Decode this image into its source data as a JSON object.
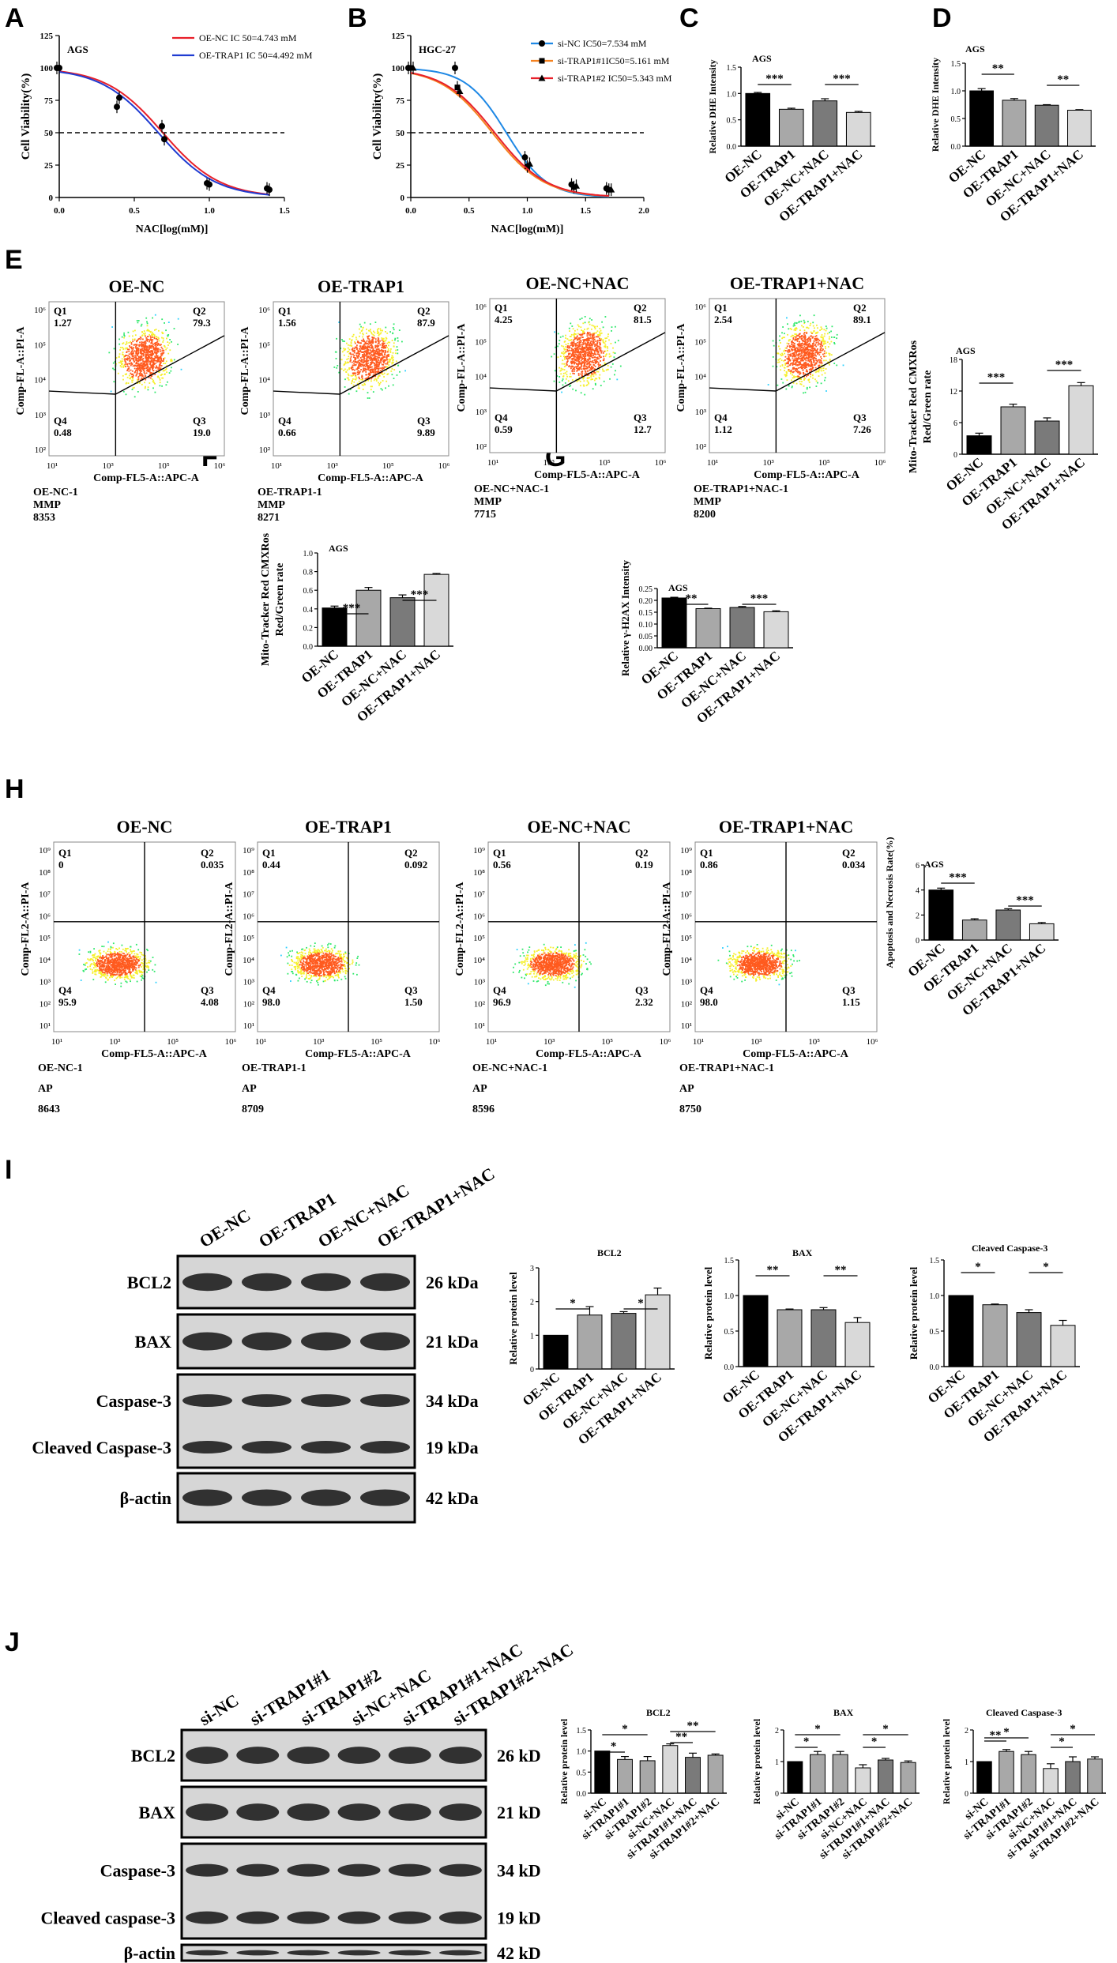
{
  "panel_letters": [
    "A",
    "B",
    "C",
    "D",
    "E",
    "F",
    "G",
    "H",
    "I",
    "J"
  ],
  "panelA": {
    "cell_line": "AGS",
    "xlabel": "NAC[log(mM)]",
    "ylabel": "Cell Viability(%)",
    "xticks": [
      "0.0",
      "0.5",
      "1.0",
      "1.5"
    ],
    "yticks": [
      "0",
      "25",
      "50",
      "75",
      "100",
      "125"
    ],
    "legend": [
      "OE-NC IC 50=4.743 mM",
      "OE-TRAP1 IC 50=4.492 mM"
    ],
    "colors": [
      "#e8202a",
      "#1f3bd1"
    ]
  },
  "panelB": {
    "cell_line": "HGC-27",
    "xlabel": "NAC[log(mM)]",
    "ylabel": "Cell Viability(%)",
    "xticks": [
      "0.0",
      "0.5",
      "1.0",
      "1.5",
      "2.0"
    ],
    "yticks": [
      "0",
      "25",
      "50",
      "75",
      "100",
      "125"
    ],
    "legend": [
      "si-NC IC50=7.534 mM",
      "si-TRAP1#1IC50=5.161 mM",
      "si-TRAP1#2 IC50=5.343 mM"
    ],
    "colors": [
      "#1e88e5",
      "#f58220",
      "#e8202a"
    ]
  },
  "oe_groups": [
    "OE-NC",
    "OE-TRAP1",
    "OE-NC+NAC",
    "OE-TRAP1+NAC"
  ],
  "si_groups": [
    "si-NC",
    "si-TRAP1#1",
    "si-TRAP1#2",
    "si-NC+NAC",
    "si-TRAP1#1+NAC",
    "si-TRAP1#2+NAC"
  ],
  "flowE": {
    "plots": [
      {
        "title": "OE-NC",
        "q": [
          "1.27",
          "79.3",
          "0.48",
          "19.0"
        ],
        "caption": [
          "OE-NC-1",
          "MMP",
          "8353"
        ]
      },
      {
        "title": "OE-TRAP1",
        "q": [
          "1.56",
          "87.9",
          "0.66",
          "9.89"
        ],
        "caption": [
          "OE-TRAP1-1",
          "MMP",
          "8271"
        ]
      },
      {
        "title": "OE-NC+NAC",
        "q": [
          "4.25",
          "81.5",
          "0.59",
          "12.7"
        ],
        "caption": [
          "OE-NC+NAC-1",
          "MMP",
          "7715"
        ]
      },
      {
        "title": "OE-TRAP1+NAC",
        "q": [
          "2.54",
          "89.1",
          "1.12",
          "7.26"
        ],
        "caption": [
          "OE-TRAP1+NAC-1",
          "MMP",
          "8200"
        ]
      }
    ],
    "xlabel": "Comp-FL5-A::APC-A",
    "ylabel": "Comp-FL-A::PI-A",
    "quadrants": [
      "Q1",
      "Q2",
      "Q4",
      "Q3"
    ]
  },
  "flowH": {
    "plots": [
      {
        "title": "OE-NC",
        "q": [
          "0",
          "0.035",
          "95.9",
          "4.08"
        ],
        "caption": [
          "OE-NC-1",
          "AP",
          "8643"
        ]
      },
      {
        "title": "OE-TRAP1",
        "q": [
          "0.44",
          "0.092",
          "98.0",
          "1.50"
        ],
        "caption": [
          "OE-TRAP1-1",
          "AP",
          "8709"
        ]
      },
      {
        "title": "OE-NC+NAC",
        "q": [
          "0.56",
          "0.19",
          "96.9",
          "2.32"
        ],
        "caption": [
          "OE-NC+NAC-1",
          "AP",
          "8596"
        ]
      },
      {
        "title": "OE-TRAP1+NAC",
        "q": [
          "0.86",
          "0.034",
          "98.0",
          "1.15"
        ],
        "caption": [
          "OE-TRAP1+NAC-1",
          "AP",
          "8750"
        ]
      }
    ],
    "xlabel": "Comp-FL5-A::APC-A",
    "ylabel": "Comp-FL2-A::PI-A",
    "quadrants": [
      "Q1",
      "Q2",
      "Q4",
      "Q3"
    ]
  },
  "blotI": {
    "lanes": [
      "OE-NC",
      "OE-TRAP1",
      "OE-NC+NAC",
      "OE-TRAP1+NAC"
    ],
    "rows": [
      {
        "name": "BCL2",
        "kda": "26 kDa"
      },
      {
        "name": "BAX",
        "kda": "21 kDa"
      },
      {
        "name": "Caspase-3",
        "kda": "34 kDa"
      },
      {
        "name": "Cleaved Caspase-3",
        "kda": "19 kDa"
      },
      {
        "name": "β-actin",
        "kda": "42 kDa"
      }
    ]
  },
  "blotJ": {
    "lanes": [
      "si-NC",
      "si-TRAP1#1",
      "si-TRAP1#2",
      "si-NC+NAC",
      "si-TRAP1#1+NAC",
      "si-TRAP1#2+NAC"
    ],
    "rows": [
      {
        "name": "BCL2",
        "kda": "26 kD"
      },
      {
        "name": "BAX",
        "kda": "21 kD"
      },
      {
        "name": "Caspase-3",
        "kda": "34 kD"
      },
      {
        "name": "Cleaved caspase-3",
        "kda": "19 kD"
      },
      {
        "name": "β-actin",
        "kda": "42 kD"
      }
    ]
  },
  "chart_data": [
    {
      "id": "A",
      "type": "line",
      "title": "AGS",
      "xlabel": "NAC[log(mM)]",
      "ylabel": "Cell Viability(%)",
      "xlim": [
        0,
        1.5
      ],
      "ylim": [
        0,
        125
      ],
      "series": [
        {
          "name": "OE-NC IC 50=4.743 mM",
          "x": [
            0,
            0.4,
            0.7,
            1.0,
            1.4
          ],
          "y": [
            100,
            70,
            55,
            11,
            7
          ]
        },
        {
          "name": "OE-TRAP1 IC 50=4.492 mM",
          "x": [
            0,
            0.4,
            0.7,
            1.0,
            1.4
          ],
          "y": [
            100,
            77,
            45,
            10,
            6
          ]
        }
      ]
    },
    {
      "id": "B",
      "type": "line",
      "title": "HGC-27",
      "xlabel": "NAC[log(mM)]",
      "ylabel": "Cell Viability(%)",
      "xlim": [
        0,
        2
      ],
      "ylim": [
        0,
        125
      ],
      "series": [
        {
          "name": "si-NC IC50=7.534 mM",
          "x": [
            0,
            0.4,
            1.0,
            1.4,
            1.7
          ],
          "y": [
            100,
            100,
            31,
            10,
            7
          ]
        },
        {
          "name": "si-TRAP1#1IC50=5.161 mM",
          "x": [
            0,
            0.4,
            1.0,
            1.4,
            1.7
          ],
          "y": [
            100,
            85,
            24,
            8,
            6
          ]
        },
        {
          "name": "si-TRAP1#2 IC50=5.343 mM",
          "x": [
            0,
            0.4,
            1.0,
            1.4,
            1.7
          ],
          "y": [
            100,
            82,
            26,
            9,
            6
          ]
        }
      ]
    },
    {
      "id": "C",
      "type": "bar",
      "title": "AGS",
      "ylabel": "Relative DHE Intensity",
      "ylim": [
        0,
        1.5
      ],
      "yticks": [
        "0.0",
        "0.5",
        "1.0",
        "1.5"
      ],
      "categories": [
        "OE-NC",
        "OE-TRAP1",
        "OE-NC+NAC",
        "OE-TRAP1+NAC"
      ],
      "values": [
        1.0,
        0.7,
        0.86,
        0.64
      ],
      "errors": [
        0.02,
        0.02,
        0.04,
        0.02
      ],
      "sig": [
        [
          0,
          1,
          "***"
        ],
        [
          2,
          3,
          "***"
        ]
      ]
    },
    {
      "id": "D",
      "type": "bar",
      "title": "AGS",
      "ylabel": "Relative DHE Intensity",
      "ylim": [
        0,
        1.5
      ],
      "yticks": [
        "0.0",
        "0.5",
        "1.0",
        "1.5"
      ],
      "categories": [
        "OE-NC",
        "OE-TRAP1",
        "OE-NC+NAC",
        "OE-TRAP1+NAC"
      ],
      "values": [
        1.0,
        0.83,
        0.74,
        0.65
      ],
      "errors": [
        0.04,
        0.03,
        0.01,
        0.01
      ],
      "sig": [
        [
          0,
          1,
          "**"
        ],
        [
          2,
          3,
          "**"
        ]
      ]
    },
    {
      "id": "E",
      "type": "bar",
      "title": "AGS",
      "ylabel": "Mito-Tracker Red CMXRos Red/Green rate",
      "ylim": [
        0,
        18
      ],
      "yticks": [
        "0",
        "6",
        "12",
        "18"
      ],
      "categories": [
        "OE-NC",
        "OE-TRAP1",
        "OE-NC+NAC",
        "OE-TRAP1+NAC"
      ],
      "values": [
        3.5,
        9.0,
        6.3,
        13.0
      ],
      "errors": [
        0.5,
        0.5,
        0.6,
        0.6
      ],
      "sig": [
        [
          0,
          1,
          "***"
        ],
        [
          2,
          3,
          "***"
        ]
      ]
    },
    {
      "id": "F",
      "type": "bar",
      "title": "AGS",
      "ylabel": "Mito-Tracker Red CMXRos Red/Green rate",
      "ylim": [
        0,
        1.0
      ],
      "yticks": [
        "0.0",
        "0.2",
        "0.4",
        "0.6",
        "0.8",
        "1.0"
      ],
      "categories": [
        "OE-NC",
        "OE-TRAP1",
        "OE-NC+NAC",
        "OE-TRAP1+NAC"
      ],
      "values": [
        0.41,
        0.6,
        0.52,
        0.77
      ],
      "errors": [
        0.02,
        0.03,
        0.03,
        0.01
      ],
      "sig": [
        [
          0,
          1,
          "***"
        ],
        [
          2,
          3,
          "***"
        ]
      ]
    },
    {
      "id": "G",
      "type": "bar",
      "title": "AGS",
      "ylabel": "Relative γ-H2AX Intensity",
      "ylim": [
        0,
        0.25
      ],
      "yticks": [
        "0.00",
        "0.05",
        "0.10",
        "0.15",
        "0.20",
        "0.25"
      ],
      "categories": [
        "OE-NC",
        "OE-TRAP1",
        "OE-NC+NAC",
        "OE-TRAP1+NAC"
      ],
      "values": [
        0.21,
        0.165,
        0.17,
        0.152
      ],
      "errors": [
        0.003,
        0.002,
        0.004,
        0.004
      ],
      "sig": [
        [
          0,
          1,
          "**"
        ],
        [
          2,
          3,
          "***"
        ]
      ]
    },
    {
      "id": "H",
      "type": "bar",
      "title": "AGS",
      "ylabel": "Apoptosis and Necrosis Rate(%)",
      "ylim": [
        0,
        6
      ],
      "yticks": [
        "0",
        "2",
        "4",
        "6"
      ],
      "categories": [
        "OE-NC",
        "OE-TRAP1",
        "OE-NC+NAC",
        "OE-TRAP1+NAC"
      ],
      "values": [
        4.0,
        1.6,
        2.4,
        1.3
      ],
      "errors": [
        0.15,
        0.1,
        0.1,
        0.1
      ],
      "sig": [
        [
          0,
          1,
          "***"
        ],
        [
          2,
          3,
          "***"
        ]
      ]
    },
    {
      "id": "I1",
      "type": "bar",
      "title": "BCL2",
      "ylabel": "Relative protein level",
      "ylim": [
        0,
        3
      ],
      "yticks": [
        "0",
        "1",
        "2",
        "3"
      ],
      "categories": [
        "OE-NC",
        "OE-TRAP1",
        "OE-NC+NAC",
        "OE-TRAP1+NAC"
      ],
      "values": [
        1.0,
        1.6,
        1.65,
        2.2
      ],
      "errors": [
        0,
        0.25,
        0.05,
        0.2
      ],
      "sig": [
        [
          0,
          1,
          "*"
        ],
        [
          2,
          3,
          "*"
        ]
      ]
    },
    {
      "id": "I2",
      "type": "bar",
      "title": "BAX",
      "ylabel": "Relative protein level",
      "ylim": [
        0,
        1.5
      ],
      "yticks": [
        "0.0",
        "0.5",
        "1.0",
        "1.5"
      ],
      "categories": [
        "OE-NC",
        "OE-TRAP1",
        "OE-NC+NAC",
        "OE-TRAP1+NAC"
      ],
      "values": [
        1.0,
        0.8,
        0.8,
        0.62
      ],
      "errors": [
        0,
        0.01,
        0.03,
        0.07
      ],
      "sig": [
        [
          0,
          1,
          "**"
        ],
        [
          2,
          3,
          "**"
        ]
      ]
    },
    {
      "id": "I3",
      "type": "bar",
      "title": "Cleaved Caspase-3",
      "ylabel": "Relative protein level",
      "ylim": [
        0,
        1.5
      ],
      "yticks": [
        "0.0",
        "0.5",
        "1.0",
        "1.5"
      ],
      "categories": [
        "OE-NC",
        "OE-TRAP1",
        "OE-NC+NAC",
        "OE-TRAP1+NAC"
      ],
      "values": [
        1.0,
        0.87,
        0.76,
        0.58
      ],
      "errors": [
        0,
        0.01,
        0.04,
        0.07
      ],
      "sig": [
        [
          0,
          1,
          "*"
        ],
        [
          2,
          3,
          "*"
        ]
      ]
    },
    {
      "id": "J1",
      "type": "bar",
      "title": "BCL2",
      "ylabel": "Relative protein level",
      "ylim": [
        0,
        1.5
      ],
      "yticks": [
        "0.0",
        "0.5",
        "1.0",
        "1.5"
      ],
      "categories": [
        "si-NC",
        "si-TRAP1#1",
        "si-TRAP1#2",
        "si-NC+NAC",
        "si-TRAP1#1+NAC",
        "si-TRAP1#2+NAC"
      ],
      "values": [
        1.0,
        0.8,
        0.77,
        1.13,
        0.85,
        0.9
      ],
      "errors": [
        0,
        0.07,
        0.1,
        0.04,
        0.1,
        0.03
      ],
      "sig": [
        [
          0,
          1,
          "*"
        ],
        [
          0,
          2,
          "*"
        ],
        [
          3,
          4,
          "**"
        ],
        [
          3,
          5,
          "**"
        ]
      ]
    },
    {
      "id": "J2",
      "type": "bar",
      "title": "BAX",
      "ylabel": "Relative protein level",
      "ylim": [
        0,
        2
      ],
      "yticks": [
        "0",
        "1",
        "2"
      ],
      "categories": [
        "si-NC",
        "si-TRAP1#1",
        "si-TRAP1#2",
        "si-NC+NAC",
        "si-TRAP1#1+NAC",
        "si-TRAP1#2+NAC"
      ],
      "values": [
        1.0,
        1.22,
        1.22,
        0.8,
        1.05,
        0.97
      ],
      "errors": [
        0,
        0.1,
        0.1,
        0.1,
        0.05,
        0.05
      ],
      "sig": [
        [
          0,
          1,
          "*"
        ],
        [
          0,
          2,
          "*"
        ],
        [
          3,
          4,
          "*"
        ],
        [
          3,
          5,
          "*"
        ]
      ]
    },
    {
      "id": "J3",
      "type": "bar",
      "title": "Cleaved Caspase-3",
      "ylabel": "Relative protein level",
      "ylim": [
        0,
        2
      ],
      "yticks": [
        "0",
        "1",
        "2"
      ],
      "categories": [
        "si-NC",
        "si-TRAP1#1",
        "si-TRAP1#2",
        "si-NC+NAC",
        "si-TRAP1#1+NAC",
        "si-TRAP1#2+NAC"
      ],
      "values": [
        1.0,
        1.32,
        1.22,
        0.78,
        1.0,
        1.08
      ],
      "errors": [
        0,
        0.06,
        0.1,
        0.15,
        0.15,
        0.07
      ],
      "sig": [
        [
          0,
          1,
          "**"
        ],
        [
          0,
          2,
          "*"
        ],
        [
          3,
          4,
          "*"
        ],
        [
          3,
          5,
          "*"
        ]
      ]
    }
  ]
}
